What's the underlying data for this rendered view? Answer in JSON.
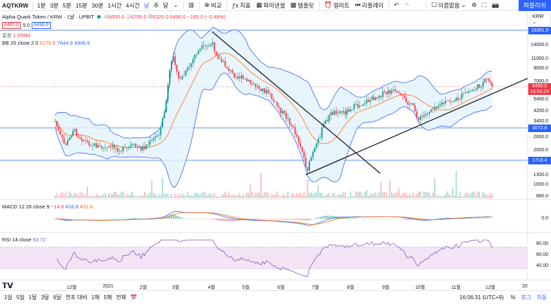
{
  "toolbar": {
    "symbol": "AQTKRW",
    "intervals": [
      "1분",
      "3분",
      "5분",
      "15분",
      "30분",
      "1시간",
      "4시간",
      "날",
      "주",
      "달"
    ],
    "compare_label": "비교",
    "indicators_label": "지표",
    "financials_label": "파이낸셜",
    "templates_label": "템플릿",
    "alert_label": "얼러트",
    "replay_label": "리플레이",
    "layout_label": "이름없음",
    "publish_label": "퍼블리쉬"
  },
  "legend": {
    "title": "Alpha Quark Token / KRW · 1날 · UPBIT",
    "open_label": "시",
    "open_value": "6650.0",
    "high_label": "고",
    "high_value": "6795.0",
    "low_label": "저",
    "low_value": "6320.0",
    "close_value": "6490.0",
    "change_value": "−165.0 (−2.48%)",
    "bid": "6485.0",
    "spread": "5.0",
    "ask": "6490.0",
    "volume_label": "볼륨",
    "volume_value": "1.555M",
    "bb_label": "BB 20 close 2 0",
    "bb_basis": "6275.8",
    "bb_upper": "7644.9",
    "bb_lower": "4906.6",
    "macd_label": "MACD 12 26 close 9",
    "macd_hist": "−14.8",
    "macd_value": "416.8",
    "macd_signal": "431.6",
    "rsi_label": "RSI 14 close",
    "rsi_value": "53.72"
  },
  "price_axis": {
    "currency": "KRW",
    "ticks": [
      "14000.0",
      "11000.0",
      "9000.0",
      "7000.0",
      "5400.0",
      "4200.0",
      "3400.0",
      "2600.0",
      "2000.0",
      "1300.0",
      "1000.0",
      "860.0"
    ],
    "hline_high": "18391.9",
    "hline_mid": "3072.8",
    "hline_low": "1718.4",
    "last_price": "6490.0",
    "countdown": "16:53:29"
  },
  "macd_axis": {
    "ticks": [
      "0.0"
    ]
  },
  "rsi_axis": {
    "ticks": [
      "80.00",
      "60.00",
      "40.00"
    ]
  },
  "date_axis": {
    "labels": [
      "12월",
      "2021",
      "2월",
      "3월",
      "4월",
      "5월",
      "6월",
      "7월",
      "8월",
      "9월",
      "10월",
      "11월",
      "12월",
      "20"
    ]
  },
  "bottombar": {
    "ranges": [
      "1일",
      "5일",
      "1달",
      "3달",
      "6달",
      "연초 대비",
      "1해",
      "5해",
      "전체"
    ],
    "clock": "16:06:31 (UTC+9)",
    "percent_label": "%",
    "log_label": "로그",
    "auto_label": "자동"
  },
  "colors": {
    "up": "#089981",
    "down": "#f23645",
    "accent": "#2962ff",
    "bb_fill": "#e3f2fd",
    "rsi_fill": "#f3e5f5",
    "rsi_line": "#7e57c2",
    "bb_basis": "#ff6d00"
  }
}
